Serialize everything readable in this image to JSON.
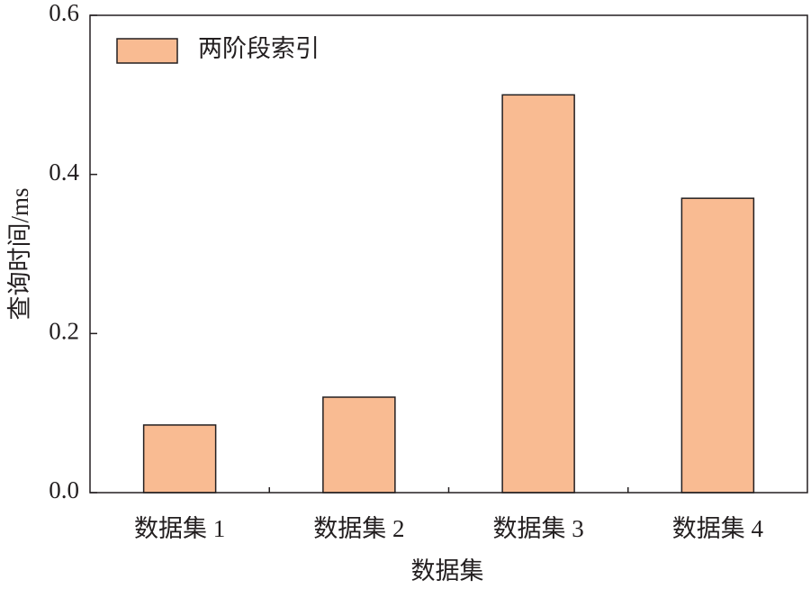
{
  "chart_data": {
    "type": "bar",
    "x_label": "数据集",
    "y_label": "查询时间/ms",
    "categories": [
      "数据集 1",
      "数据集 2",
      "数据集 3",
      "数据集 4"
    ],
    "series": [
      {
        "name": "两阶段索引",
        "color": "#f9bb92",
        "values": [
          0.085,
          0.12,
          0.5,
          0.37
        ]
      }
    ],
    "ylim": [
      0,
      0.6
    ],
    "yticks": [
      {
        "value": 0,
        "label": "0.0"
      },
      0.2,
      0.4,
      0.6
    ],
    "legend": "upper left"
  }
}
